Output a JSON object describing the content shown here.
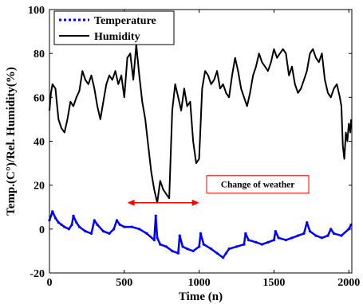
{
  "chart_data": {
    "type": "line",
    "xlabel": "Time (n)",
    "ylabel": "Temp.(C°)/Rel. Humidity(%)",
    "xlim": [
      0,
      2020
    ],
    "ylim": [
      -20,
      100
    ],
    "xticks": [
      0,
      500,
      1000,
      1500,
      2000
    ],
    "yticks": [
      -20,
      0,
      20,
      40,
      60,
      80,
      100
    ],
    "grid": false,
    "legend": "top-left",
    "series": [
      {
        "name": "Temperature",
        "color": "#0000ff",
        "style": "dotted",
        "x": [
          0,
          20,
          40,
          60,
          80,
          100,
          130,
          150,
          160,
          180,
          200,
          240,
          280,
          300,
          320,
          360,
          400,
          430,
          450,
          470,
          500,
          550,
          600,
          650,
          700,
          710,
          720,
          740,
          780,
          820,
          860,
          870,
          890,
          920,
          960,
          1000,
          1010,
          1030,
          1080,
          1120,
          1160,
          1180,
          1200,
          1250,
          1300,
          1310,
          1330,
          1380,
          1420,
          1460,
          1500,
          1510,
          1530,
          1580,
          1620,
          1660,
          1700,
          1720,
          1740,
          1780,
          1820,
          1860,
          1880,
          1900,
          1950,
          2000,
          2015
        ],
        "y": [
          4,
          8,
          5,
          3,
          2,
          1,
          0,
          2,
          6,
          3,
          1,
          -1,
          -2,
          4,
          2,
          -1,
          -2,
          0,
          4,
          2,
          1,
          1,
          0,
          -2,
          -5,
          6,
          -4,
          -7,
          -8,
          -10,
          -11,
          -3,
          -8,
          -9,
          -10,
          -8,
          -2,
          -7,
          -9,
          -11,
          -13,
          -11,
          -9,
          -8,
          -7,
          -2,
          -5,
          -6,
          -7,
          -6,
          -5,
          -1,
          -4,
          -5,
          -4,
          -3,
          -2,
          3,
          -1,
          -3,
          -4,
          -3,
          0,
          -2,
          -3,
          0,
          2
        ]
      },
      {
        "name": "Humidity",
        "color": "#000000",
        "style": "solid",
        "x": [
          0,
          10,
          20,
          40,
          60,
          80,
          100,
          120,
          140,
          160,
          180,
          200,
          220,
          240,
          260,
          280,
          300,
          320,
          340,
          360,
          380,
          400,
          420,
          440,
          460,
          480,
          500,
          520,
          540,
          560,
          580,
          600,
          620,
          640,
          660,
          680,
          700,
          720,
          740,
          760,
          780,
          800,
          820,
          840,
          860,
          880,
          900,
          920,
          940,
          960,
          980,
          1000,
          1020,
          1040,
          1060,
          1080,
          1100,
          1120,
          1140,
          1160,
          1180,
          1200,
          1220,
          1240,
          1260,
          1280,
          1300,
          1320,
          1340,
          1360,
          1380,
          1400,
          1420,
          1440,
          1460,
          1480,
          1500,
          1520,
          1540,
          1560,
          1580,
          1600,
          1620,
          1640,
          1660,
          1680,
          1700,
          1720,
          1740,
          1760,
          1780,
          1800,
          1820,
          1840,
          1860,
          1880,
          1900,
          1920,
          1940,
          1950,
          1960,
          1970,
          1980,
          1990,
          2000,
          2010,
          2015
        ],
        "y": [
          54,
          62,
          66,
          64,
          50,
          46,
          44,
          50,
          58,
          56,
          60,
          63,
          72,
          68,
          66,
          70,
          64,
          56,
          50,
          58,
          66,
          70,
          68,
          72,
          66,
          70,
          60,
          78,
          80,
          68,
          84,
          70,
          58,
          50,
          38,
          26,
          18,
          12,
          22,
          18,
          16,
          14,
          54,
          66,
          60,
          54,
          64,
          56,
          58,
          40,
          30,
          32,
          64,
          72,
          70,
          66,
          68,
          72,
          64,
          66,
          62,
          60,
          70,
          78,
          72,
          64,
          60,
          56,
          62,
          70,
          74,
          80,
          76,
          74,
          72,
          76,
          82,
          78,
          80,
          82,
          80,
          70,
          74,
          66,
          62,
          64,
          68,
          72,
          80,
          82,
          78,
          76,
          80,
          68,
          62,
          60,
          64,
          66,
          60,
          56,
          38,
          32,
          44,
          40,
          48,
          44,
          50
        ]
      }
    ],
    "annotation": {
      "text": "Change of weather",
      "arrow_x": [
        520,
        1000
      ],
      "arrow_y": 12,
      "box_color": "#ff0000",
      "arrow_color": "#ff0000"
    }
  }
}
